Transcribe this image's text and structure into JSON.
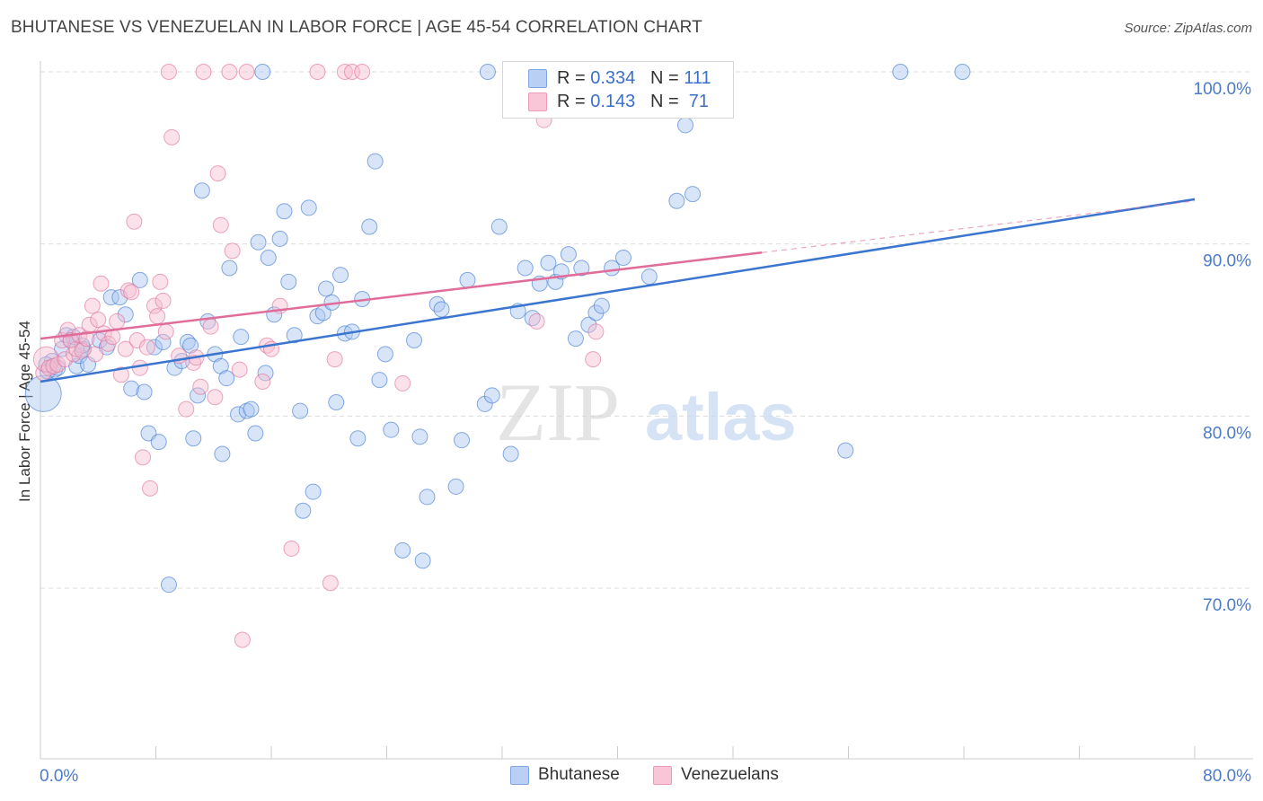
{
  "header": {
    "title": "BHUTANESE VS VENEZUELAN IN LABOR FORCE | AGE 45-54 CORRELATION CHART",
    "source": "Source: ZipAtlas.com"
  },
  "legend": {
    "rows": [
      {
        "r_label": "R = ",
        "r_value": "0.334",
        "n_label": "N = ",
        "n_value": "111",
        "color": "#9dbdf0"
      },
      {
        "r_label": "R = ",
        "r_value": "0.143",
        "n_label": "N = ",
        "n_value": " 71",
        "color": "#f5b3c8"
      }
    ],
    "series": [
      {
        "name": "Bhutanese",
        "color": "#9dbdf0"
      },
      {
        "name": "Venezuelans",
        "color": "#f5b3c8"
      }
    ]
  },
  "watermark": {
    "zip": "ZIP",
    "atlas": "atlas"
  },
  "chart_data": {
    "type": "scatter",
    "title": "BHUTANESE VS VENEZUELAN IN LABOR FORCE | AGE 45-54 CORRELATION CHART",
    "xlabel": "",
    "ylabel": "In Labor Force | Age 45-54",
    "xlim": [
      0,
      80
    ],
    "ylim": [
      60,
      102
    ],
    "x_tick_labels": [
      "0.0%",
      "80.0%"
    ],
    "y_tick_labels": [
      "70.0%",
      "80.0%",
      "90.0%",
      "100.0%"
    ],
    "y_ticks": [
      70,
      80,
      90,
      100
    ],
    "grid": true,
    "legend_position": "top-center",
    "series": [
      {
        "name": "Bhutanese",
        "color": "#3a75d0",
        "fill": "#a9c6f2",
        "r": 0.334,
        "n": 111,
        "trend": {
          "x": [
            0,
            80
          ],
          "y": [
            82.0,
            92.6
          ]
        },
        "points": [
          [
            0.2,
            81.3
          ],
          [
            0.5,
            82.6
          ],
          [
            0.8,
            83.2
          ],
          [
            1.0,
            82.7
          ],
          [
            1.2,
            82.8
          ],
          [
            1.5,
            83.9
          ],
          [
            1.8,
            84.7
          ],
          [
            2.1,
            84.4
          ],
          [
            2.3,
            84.6
          ],
          [
            2.5,
            82.9
          ],
          [
            2.7,
            83.5
          ],
          [
            3.0,
            83.9
          ],
          [
            3.3,
            83.0
          ],
          [
            4.1,
            84.4
          ],
          [
            4.6,
            84.0
          ],
          [
            4.9,
            86.9
          ],
          [
            5.5,
            86.9
          ],
          [
            5.9,
            85.9
          ],
          [
            6.3,
            81.6
          ],
          [
            6.9,
            87.9
          ],
          [
            7.2,
            81.4
          ],
          [
            7.5,
            79.0
          ],
          [
            7.9,
            84.0
          ],
          [
            8.2,
            78.5
          ],
          [
            8.5,
            84.3
          ],
          [
            8.9,
            70.2
          ],
          [
            9.3,
            82.8
          ],
          [
            9.8,
            83.2
          ],
          [
            10.2,
            84.3
          ],
          [
            10.4,
            84.1
          ],
          [
            10.6,
            78.7
          ],
          [
            10.9,
            81.2
          ],
          [
            11.2,
            93.1
          ],
          [
            11.6,
            85.5
          ],
          [
            12.1,
            83.6
          ],
          [
            12.5,
            82.9
          ],
          [
            12.6,
            77.8
          ],
          [
            12.9,
            82.2
          ],
          [
            13.1,
            88.6
          ],
          [
            13.7,
            80.1
          ],
          [
            13.9,
            84.6
          ],
          [
            14.3,
            80.3
          ],
          [
            14.6,
            80.4
          ],
          [
            14.9,
            79.0
          ],
          [
            15.1,
            90.1
          ],
          [
            15.4,
            100.0
          ],
          [
            15.6,
            82.5
          ],
          [
            15.8,
            89.2
          ],
          [
            16.2,
            85.9
          ],
          [
            16.6,
            90.3
          ],
          [
            16.9,
            91.9
          ],
          [
            17.2,
            87.8
          ],
          [
            17.6,
            84.7
          ],
          [
            18.0,
            80.3
          ],
          [
            18.2,
            74.5
          ],
          [
            18.6,
            92.1
          ],
          [
            18.9,
            75.6
          ],
          [
            19.2,
            85.8
          ],
          [
            19.6,
            86.0
          ],
          [
            19.8,
            87.4
          ],
          [
            20.2,
            86.6
          ],
          [
            20.5,
            80.8
          ],
          [
            20.8,
            88.2
          ],
          [
            21.1,
            84.8
          ],
          [
            21.6,
            84.9
          ],
          [
            22.0,
            78.7
          ],
          [
            22.3,
            86.8
          ],
          [
            22.8,
            91.0
          ],
          [
            23.2,
            94.8
          ],
          [
            23.5,
            82.1
          ],
          [
            23.9,
            83.6
          ],
          [
            24.3,
            79.2
          ],
          [
            25.1,
            72.2
          ],
          [
            25.9,
            84.4
          ],
          [
            26.3,
            78.8
          ],
          [
            26.5,
            71.6
          ],
          [
            26.8,
            75.3
          ],
          [
            27.5,
            86.5
          ],
          [
            27.8,
            86.2
          ],
          [
            28.8,
            75.9
          ],
          [
            29.2,
            78.6
          ],
          [
            29.6,
            87.9
          ],
          [
            31.0,
            100.0
          ],
          [
            30.8,
            80.7
          ],
          [
            31.3,
            81.2
          ],
          [
            31.8,
            91.0
          ],
          [
            32.6,
            77.8
          ],
          [
            33.1,
            86.1
          ],
          [
            33.6,
            88.6
          ],
          [
            34.1,
            85.7
          ],
          [
            34.6,
            87.7
          ],
          [
            35.2,
            88.9
          ],
          [
            35.7,
            87.8
          ],
          [
            36.1,
            88.4
          ],
          [
            36.6,
            89.4
          ],
          [
            37.1,
            84.5
          ],
          [
            37.5,
            88.6
          ],
          [
            38.0,
            85.3
          ],
          [
            38.5,
            86.0
          ],
          [
            38.9,
            86.4
          ],
          [
            39.6,
            88.6
          ],
          [
            40.4,
            89.2
          ],
          [
            42.2,
            88.1
          ],
          [
            44.1,
            92.5
          ],
          [
            45.2,
            92.9
          ],
          [
            55.8,
            78.0
          ],
          [
            59.6,
            100.0
          ],
          [
            63.9,
            100.0
          ],
          [
            44.7,
            96.9
          ],
          [
            0.4,
            83.0
          ],
          [
            2.9,
            84.1
          ]
        ]
      },
      {
        "name": "Venezuelans",
        "color": "#e06c9a",
        "fill": "#f7bccf",
        "r": 0.143,
        "n": 71,
        "trend": {
          "x": [
            0,
            50
          ],
          "y": [
            84.5,
            89.5
          ]
        },
        "trend_dashed": {
          "x": [
            50,
            80
          ],
          "y": [
            89.5,
            92.5
          ]
        },
        "points": [
          [
            0.2,
            82.5
          ],
          [
            0.4,
            83.3
          ],
          [
            0.6,
            82.8
          ],
          [
            0.9,
            82.9
          ],
          [
            1.2,
            83.0
          ],
          [
            1.5,
            84.4
          ],
          [
            1.7,
            83.3
          ],
          [
            1.9,
            85.0
          ],
          [
            2.1,
            84.4
          ],
          [
            2.3,
            83.6
          ],
          [
            2.5,
            83.9
          ],
          [
            2.7,
            84.7
          ],
          [
            2.9,
            83.8
          ],
          [
            3.2,
            84.5
          ],
          [
            3.4,
            85.3
          ],
          [
            3.6,
            86.4
          ],
          [
            3.8,
            83.6
          ],
          [
            4.0,
            85.6
          ],
          [
            4.2,
            87.7
          ],
          [
            4.4,
            84.8
          ],
          [
            4.7,
            84.2
          ],
          [
            5.0,
            84.6
          ],
          [
            5.3,
            85.5
          ],
          [
            5.6,
            82.4
          ],
          [
            5.9,
            83.9
          ],
          [
            6.1,
            87.3
          ],
          [
            6.3,
            87.2
          ],
          [
            6.5,
            91.3
          ],
          [
            6.7,
            84.4
          ],
          [
            6.9,
            82.8
          ],
          [
            7.1,
            77.6
          ],
          [
            7.4,
            84.0
          ],
          [
            7.6,
            75.8
          ],
          [
            7.9,
            86.4
          ],
          [
            8.1,
            85.8
          ],
          [
            8.3,
            87.8
          ],
          [
            8.5,
            86.7
          ],
          [
            8.7,
            84.9
          ],
          [
            8.9,
            100.0
          ],
          [
            9.1,
            96.2
          ],
          [
            9.6,
            83.5
          ],
          [
            10.1,
            80.4
          ],
          [
            10.6,
            83.1
          ],
          [
            10.8,
            83.4
          ],
          [
            11.1,
            81.7
          ],
          [
            11.3,
            100.0
          ],
          [
            11.8,
            85.2
          ],
          [
            12.1,
            81.1
          ],
          [
            12.3,
            94.1
          ],
          [
            12.5,
            91.1
          ],
          [
            13.1,
            100.0
          ],
          [
            13.3,
            89.6
          ],
          [
            13.8,
            82.7
          ],
          [
            14.3,
            100.0
          ],
          [
            15.4,
            82.0
          ],
          [
            15.7,
            84.1
          ],
          [
            16.0,
            83.9
          ],
          [
            16.6,
            86.4
          ],
          [
            17.4,
            72.3
          ],
          [
            19.2,
            100.0
          ],
          [
            20.1,
            70.3
          ],
          [
            20.4,
            83.3
          ],
          [
            21.1,
            100.0
          ],
          [
            21.6,
            100.0
          ],
          [
            22.3,
            100.0
          ],
          [
            25.1,
            81.9
          ],
          [
            34.4,
            85.5
          ],
          [
            34.9,
            97.2
          ],
          [
            38.3,
            83.3
          ],
          [
            38.5,
            84.9
          ],
          [
            14.0,
            67.0
          ]
        ]
      }
    ]
  }
}
